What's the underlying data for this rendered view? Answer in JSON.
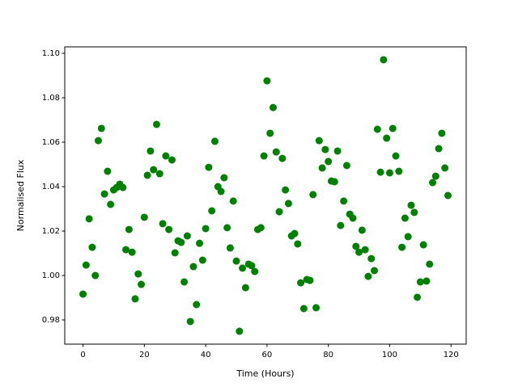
{
  "chart_data": {
    "type": "scatter",
    "xlabel": "Time (Hours)",
    "ylabel": "Normalised Flux",
    "color": "#008000",
    "grid": false,
    "x": [
      0,
      1,
      2,
      3,
      4,
      5,
      6,
      7,
      8,
      9,
      10,
      11,
      12,
      13,
      14,
      15,
      16,
      17,
      18,
      19,
      20,
      21,
      22,
      23,
      24,
      25,
      26,
      27,
      28,
      29,
      30,
      31,
      32,
      33,
      34,
      35,
      36,
      37,
      38,
      39,
      40,
      41,
      42,
      43,
      44,
      45,
      46,
      47,
      48,
      49,
      50,
      51,
      52,
      53,
      54,
      55,
      56,
      57,
      58,
      59,
      60,
      61,
      62,
      63,
      64,
      65,
      66,
      67,
      68,
      69,
      70,
      71,
      72,
      73,
      74,
      75,
      76,
      77,
      78,
      79,
      80,
      81,
      82,
      83,
      84,
      85,
      86,
      87,
      88,
      89,
      90,
      91,
      92,
      93,
      94,
      95,
      96,
      97,
      98,
      99,
      100,
      101,
      102,
      103,
      104,
      105,
      106,
      107,
      108,
      109,
      110,
      111,
      112,
      113,
      114,
      115,
      116,
      117,
      118,
      119
    ],
    "values": [
      0.9916,
      1.0047,
      1.0255,
      1.0127,
      1.0,
      1.0607,
      1.0662,
      1.0367,
      1.0469,
      1.032,
      1.0385,
      1.0396,
      1.0411,
      1.0396,
      1.0116,
      1.0207,
      1.0105,
      0.9895,
      1.0007,
      0.996,
      1.0262,
      1.0451,
      1.056,
      1.0476,
      1.068,
      1.0458,
      1.0233,
      1.0538,
      1.0207,
      1.052,
      1.0102,
      1.0156,
      1.0149,
      0.9971,
      1.0178,
      0.9793,
      1.004,
      0.9869,
      1.0145,
      1.0069,
      1.0211,
      1.0487,
      1.0291,
      1.0604,
      1.04,
      1.0378,
      1.044,
      1.0215,
      1.0124,
      1.0335,
      1.0065,
      0.9749,
      1.0033,
      0.9945,
      1.0051,
      1.0044,
      1.0018,
      1.0207,
      1.0215,
      1.0538,
      1.0876,
      1.064,
      1.0756,
      1.0556,
      1.0287,
      1.0527,
      1.0385,
      1.0324,
      1.0178,
      1.0189,
      1.0142,
      0.9967,
      0.9851,
      0.9982,
      0.9978,
      1.0364,
      0.9855,
      1.0607,
      1.0484,
      1.0567,
      1.0513,
      1.0425,
      1.0422,
      1.056,
      1.0225,
      1.0335,
      1.0495,
      1.0276,
      1.0258,
      1.0131,
      1.0105,
      1.0204,
      1.0116,
      0.9996,
      1.0076,
      1.0022,
      1.0658,
      1.0465,
      1.0971,
      1.0618,
      1.0462,
      1.0662,
      1.0538,
      1.0469,
      1.0127,
      1.0258,
      1.0175,
      1.0316,
      1.0284,
      0.9902,
      0.9971,
      1.0138,
      0.9975,
      1.0051,
      1.0418,
      1.0447,
      1.0571,
      1.064,
      1.0484,
      1.036
    ],
    "xlim": [
      -5.95,
      124.95
    ],
    "xticks": [
      0,
      20,
      40,
      60,
      80,
      100,
      120
    ],
    "ylim": [
      0.9691,
      1.1029
    ],
    "yticks": [
      0.98,
      {
        "value": 1,
        "label": "1.00"
      },
      1.02,
      1.04,
      1.06,
      1.08,
      {
        "value": 1.1,
        "label": "1.10"
      }
    ]
  }
}
